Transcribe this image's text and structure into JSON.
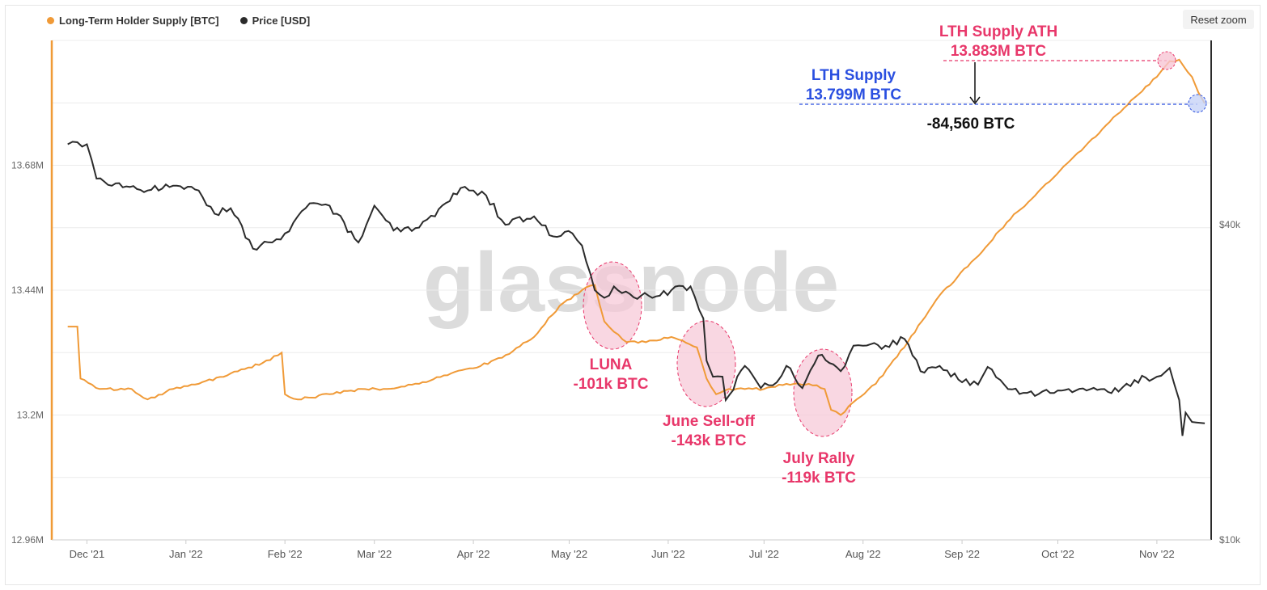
{
  "legend": {
    "lth_label": "Long-Term Holder Supply [BTC]",
    "price_label": "Price [USD]"
  },
  "controls": {
    "reset_zoom": "Reset zoom"
  },
  "watermark": "glassnode",
  "colors": {
    "lth": "#f09a37",
    "price": "#2b2b2b",
    "annotation_red": "#e8376a",
    "annotation_blue": "#2a4fe0",
    "highlight_fill": "#f7c6d5"
  },
  "chart_data": {
    "type": "line",
    "x_ticks": [
      "Dec '21",
      "Jan '22",
      "Feb '22",
      "Mar '22",
      "Apr '22",
      "May '22",
      "Jun '22",
      "Jul '22",
      "Aug '22",
      "Sep '22",
      "Oct '22",
      "Nov '22"
    ],
    "y_left": {
      "ticks": [
        "12.96M",
        "13.2M",
        "13.44M",
        "13.68M"
      ],
      "ylim": [
        12.96,
        13.92
      ]
    },
    "y_right": {
      "ticks": [
        "$10k",
        "$40k"
      ],
      "scale": "log",
      "ylim": [
        10000,
        90000
      ]
    },
    "series": [
      {
        "name": "Long-Term Holder Supply [BTC]",
        "axis": "left",
        "x": [
          "2021-11-25",
          "2021-11-28",
          "2021-11-29",
          "2021-12-05",
          "2021-12-15",
          "2021-12-20",
          "2021-12-28",
          "2022-01-05",
          "2022-01-15",
          "2022-01-25",
          "2022-01-31",
          "2022-02-01",
          "2022-02-05",
          "2022-02-15",
          "2022-02-25",
          "2022-03-05",
          "2022-03-15",
          "2022-03-25",
          "2022-04-01",
          "2022-04-10",
          "2022-04-20",
          "2022-04-28",
          "2022-05-05",
          "2022-05-09",
          "2022-05-12",
          "2022-05-15",
          "2022-05-19",
          "2022-05-25",
          "2022-06-02",
          "2022-06-10",
          "2022-06-13",
          "2022-06-16",
          "2022-06-20",
          "2022-06-25",
          "2022-07-01",
          "2022-07-08",
          "2022-07-15",
          "2022-07-20",
          "2022-07-22",
          "2022-07-25",
          "2022-07-30",
          "2022-08-05",
          "2022-08-15",
          "2022-08-25",
          "2022-09-05",
          "2022-09-15",
          "2022-09-25",
          "2022-10-05",
          "2022-10-15",
          "2022-10-25",
          "2022-11-01",
          "2022-11-05",
          "2022-11-08",
          "2022-11-12",
          "2022-11-14",
          "2022-11-16"
        ],
        "values": [
          13.37,
          13.37,
          13.27,
          13.25,
          13.25,
          13.23,
          13.25,
          13.26,
          13.28,
          13.3,
          13.32,
          13.24,
          13.23,
          13.24,
          13.25,
          13.25,
          13.26,
          13.28,
          13.29,
          13.31,
          13.35,
          13.41,
          13.44,
          13.45,
          13.38,
          13.36,
          13.34,
          13.34,
          13.35,
          13.33,
          13.27,
          13.24,
          13.25,
          13.25,
          13.25,
          13.26,
          13.26,
          13.25,
          13.21,
          13.2,
          13.23,
          13.26,
          13.34,
          13.43,
          13.5,
          13.57,
          13.63,
          13.69,
          13.75,
          13.81,
          13.85,
          13.88,
          13.883,
          13.85,
          13.82,
          13.799
        ]
      },
      {
        "name": "Price [USD]",
        "axis": "right",
        "x": [
          "2021-11-25",
          "2021-11-28",
          "2021-12-01",
          "2021-12-04",
          "2021-12-10",
          "2021-12-20",
          "2021-12-28",
          "2022-01-05",
          "2022-01-10",
          "2022-01-15",
          "2022-01-22",
          "2022-01-28",
          "2022-02-01",
          "2022-02-05",
          "2022-02-10",
          "2022-02-15",
          "2022-02-24",
          "2022-03-01",
          "2022-03-07",
          "2022-03-15",
          "2022-03-20",
          "2022-03-28",
          "2022-04-01",
          "2022-04-05",
          "2022-04-11",
          "2022-04-20",
          "2022-04-26",
          "2022-05-02",
          "2022-05-05",
          "2022-05-09",
          "2022-05-12",
          "2022-05-15",
          "2022-05-20",
          "2022-05-27",
          "2022-06-02",
          "2022-06-08",
          "2022-06-12",
          "2022-06-13",
          "2022-06-15",
          "2022-06-18",
          "2022-06-19",
          "2022-06-25",
          "2022-06-30",
          "2022-07-05",
          "2022-07-08",
          "2022-07-13",
          "2022-07-18",
          "2022-07-25",
          "2022-07-29",
          "2022-08-01",
          "2022-08-08",
          "2022-08-14",
          "2022-08-19",
          "2022-08-25",
          "2022-09-01",
          "2022-09-06",
          "2022-09-09",
          "2022-09-13",
          "2022-09-19",
          "2022-09-25",
          "2022-10-01",
          "2022-10-10",
          "2022-10-20",
          "2022-10-25",
          "2022-11-01",
          "2022-11-05",
          "2022-11-08",
          "2022-11-09",
          "2022-11-10",
          "2022-11-12",
          "2022-11-16"
        ],
        "values": [
          57000,
          57500,
          57000,
          49000,
          48000,
          46500,
          47500,
          46500,
          42000,
          43000,
          36000,
          37000,
          38500,
          41500,
          44000,
          43500,
          37000,
          43500,
          39000,
          39500,
          41500,
          47000,
          46500,
          45500,
          40000,
          41500,
          38000,
          38500,
          36500,
          30000,
          29000,
          30500,
          29500,
          29000,
          30000,
          30500,
          26500,
          22000,
          20500,
          20500,
          18500,
          21500,
          19500,
          20000,
          21500,
          19500,
          22500,
          21000,
          23500,
          23500,
          23500,
          24200,
          21000,
          21500,
          20000,
          19800,
          21400,
          20200,
          19000,
          19000,
          19300,
          19300,
          19200,
          20200,
          20500,
          21300,
          18500,
          15800,
          17500,
          16800,
          16700
        ]
      }
    ],
    "annotations": [
      {
        "label": "LTH Supply ATH",
        "value": "13.883M BTC"
      },
      {
        "label": "LTH Supply",
        "value": "13.799M BTC"
      },
      {
        "delta": "-84,560 BTC"
      },
      {
        "label": "LUNA",
        "value": "-101k BTC"
      },
      {
        "label": "June Sell-off",
        "value": "-143k BTC"
      },
      {
        "label": "July Rally",
        "value": "-119k BTC"
      }
    ]
  }
}
